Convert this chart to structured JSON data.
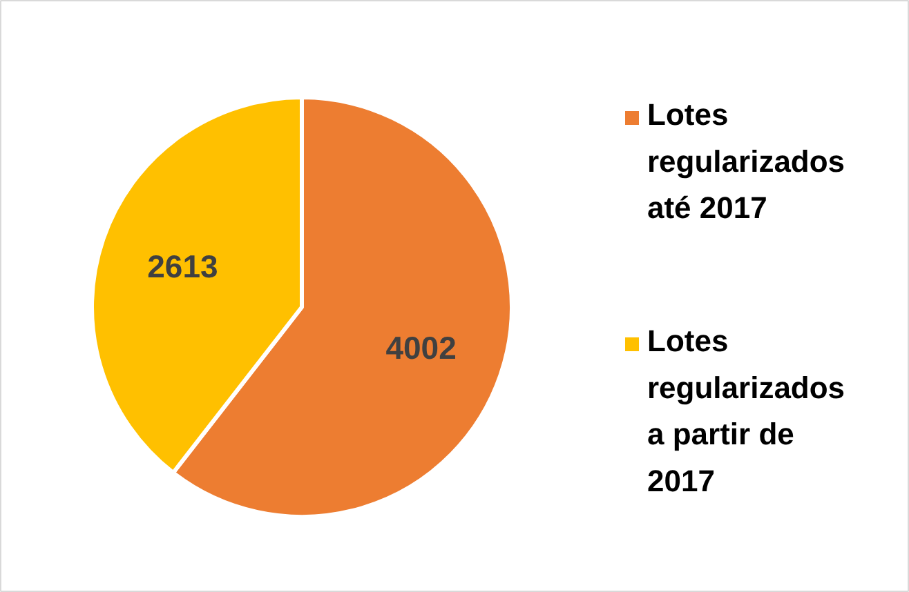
{
  "chart_data": {
    "type": "pie",
    "categories": [
      "Lotes regularizados até 2017",
      "Lotes regularizados a partir de 2017"
    ],
    "values": [
      4002,
      2613
    ],
    "colors": [
      "#ed7d31",
      "#ffc000"
    ],
    "data_labels": true,
    "legend": "right"
  }
}
